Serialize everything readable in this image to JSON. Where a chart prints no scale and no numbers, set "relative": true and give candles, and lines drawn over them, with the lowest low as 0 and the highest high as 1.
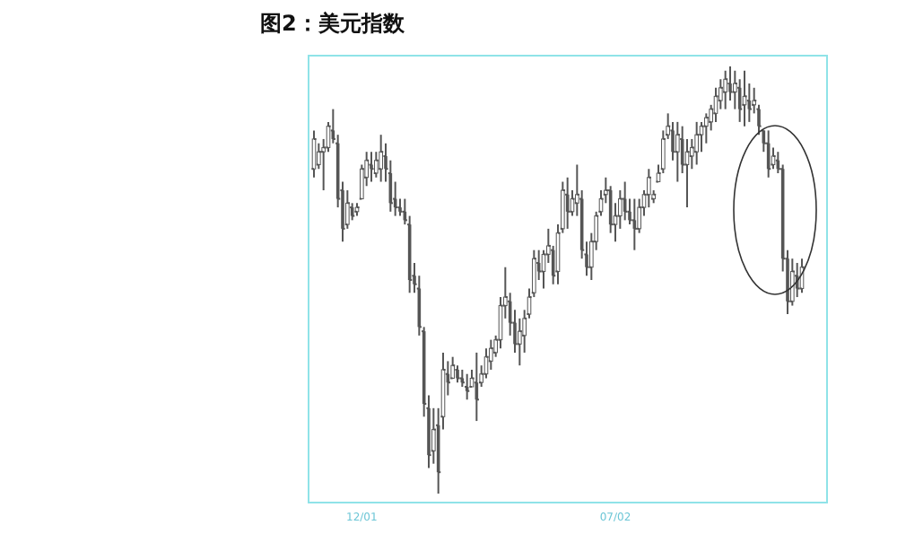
{
  "chart_data": {
    "type": "candlestick",
    "title": "图2：美元指数",
    "relative": true,
    "color": "#555555",
    "categories": [
      null,
      null,
      null,
      null,
      null,
      null,
      null,
      null,
      null,
      null,
      "12/01",
      null,
      null,
      null,
      null,
      null,
      null,
      null,
      null,
      null,
      null,
      null,
      null,
      null,
      null,
      null,
      null,
      null,
      null,
      null,
      null,
      null,
      null,
      null,
      null,
      null,
      null,
      null,
      null,
      null,
      null,
      null,
      null,
      null,
      null,
      null,
      null,
      null,
      null,
      null,
      null,
      null,
      null,
      null,
      null,
      null,
      null,
      null,
      null,
      null,
      null,
      null,
      null,
      "07/02",
      null,
      null,
      null,
      null,
      null,
      null,
      null,
      null,
      null,
      null,
      null,
      null,
      null,
      null,
      null,
      null,
      null,
      null,
      null,
      null,
      null,
      null,
      null,
      null,
      null,
      null,
      null,
      null,
      null,
      null,
      null,
      null,
      null,
      null,
      null,
      null,
      null,
      null,
      null
    ],
    "ohlc": [
      [
        0.76,
        0.85,
        0.74,
        0.83
      ],
      [
        0.77,
        0.82,
        0.76,
        0.8
      ],
      [
        0.8,
        0.83,
        0.71,
        0.81
      ],
      [
        0.81,
        0.87,
        0.8,
        0.86
      ],
      [
        0.85,
        0.9,
        0.82,
        0.83
      ],
      [
        0.82,
        0.84,
        0.67,
        0.69
      ],
      [
        0.71,
        0.73,
        0.59,
        0.62
      ],
      [
        0.63,
        0.71,
        0.62,
        0.68
      ],
      [
        0.67,
        0.68,
        0.64,
        0.65
      ],
      [
        0.66,
        0.68,
        0.65,
        0.67
      ],
      [
        0.69,
        0.77,
        0.69,
        0.76
      ],
      [
        0.74,
        0.8,
        0.72,
        0.78
      ],
      [
        0.77,
        0.8,
        0.73,
        0.76
      ],
      [
        0.75,
        0.8,
        0.74,
        0.78
      ],
      [
        0.76,
        0.84,
        0.73,
        0.8
      ],
      [
        0.79,
        0.82,
        0.73,
        0.76
      ],
      [
        0.75,
        0.78,
        0.66,
        0.68
      ],
      [
        0.69,
        0.73,
        0.65,
        0.67
      ],
      [
        0.67,
        0.69,
        0.65,
        0.66
      ],
      [
        0.66,
        0.69,
        0.63,
        0.64
      ],
      [
        0.63,
        0.65,
        0.47,
        0.5
      ],
      [
        0.51,
        0.54,
        0.47,
        0.49
      ],
      [
        0.48,
        0.51,
        0.37,
        0.39
      ],
      [
        0.38,
        0.39,
        0.18,
        0.21
      ],
      [
        0.2,
        0.23,
        0.06,
        0.09
      ],
      [
        0.1,
        0.2,
        0.07,
        0.15
      ],
      [
        0.16,
        0.2,
        0,
        0.05
      ],
      [
        0.18,
        0.33,
        0.15,
        0.29
      ],
      [
        0.28,
        0.31,
        0.23,
        0.26
      ],
      [
        0.27,
        0.32,
        0.27,
        0.3
      ],
      [
        0.29,
        0.3,
        0.26,
        0.27
      ],
      [
        0.27,
        0.29,
        0.25,
        0.26
      ],
      [
        0.25,
        0.28,
        0.22,
        0.24
      ],
      [
        0.25,
        0.29,
        0.25,
        0.27
      ],
      [
        0.26,
        0.33,
        0.17,
        0.22
      ],
      [
        0.26,
        0.3,
        0.25,
        0.28
      ],
      [
        0.28,
        0.34,
        0.27,
        0.32
      ],
      [
        0.31,
        0.36,
        0.29,
        0.34
      ],
      [
        0.33,
        0.37,
        0.32,
        0.36
      ],
      [
        0.36,
        0.46,
        0.34,
        0.44
      ],
      [
        0.44,
        0.53,
        0.41,
        0.46
      ],
      [
        0.45,
        0.47,
        0.37,
        0.4
      ],
      [
        0.4,
        0.43,
        0.33,
        0.35
      ],
      [
        0.35,
        0.41,
        0.3,
        0.38
      ],
      [
        0.37,
        0.43,
        0.33,
        0.41
      ],
      [
        0.42,
        0.48,
        0.41,
        0.46
      ],
      [
        0.47,
        0.57,
        0.46,
        0.55
      ],
      [
        0.54,
        0.57,
        0.5,
        0.52
      ],
      [
        0.52,
        0.57,
        0.48,
        0.56
      ],
      [
        0.56,
        0.62,
        0.54,
        0.58
      ],
      [
        0.57,
        0.58,
        0.49,
        0.51
      ],
      [
        0.52,
        0.63,
        0.49,
        0.61
      ],
      [
        0.62,
        0.73,
        0.61,
        0.71
      ],
      [
        0.7,
        0.74,
        0.62,
        0.66
      ],
      [
        0.66,
        0.71,
        0.65,
        0.69
      ],
      [
        0.68,
        0.77,
        0.65,
        0.7
      ],
      [
        0.69,
        0.71,
        0.55,
        0.57
      ],
      [
        0.56,
        0.59,
        0.51,
        0.53
      ],
      [
        0.53,
        0.61,
        0.5,
        0.59
      ],
      [
        0.59,
        0.66,
        0.57,
        0.65
      ],
      [
        0.66,
        0.71,
        0.65,
        0.69
      ],
      [
        0.7,
        0.74,
        0.68,
        0.71
      ],
      [
        0.71,
        0.72,
        0.61,
        0.63
      ],
      [
        0.63,
        0.68,
        0.59,
        0.65
      ],
      [
        0.65,
        0.71,
        0.62,
        0.69
      ],
      [
        0.69,
        0.73,
        0.64,
        0.66
      ],
      [
        0.66,
        0.69,
        0.63,
        0.64
      ],
      [
        0.64,
        0.69,
        0.57,
        0.62
      ],
      [
        0.62,
        0.69,
        0.61,
        0.67
      ],
      [
        0.67,
        0.71,
        0.65,
        0.7
      ],
      [
        0.7,
        0.76,
        0.67,
        0.74
      ],
      [
        0.69,
        0.71,
        0.68,
        0.7
      ],
      [
        0.73,
        0.77,
        0.73,
        0.75
      ],
      [
        0.76,
        0.85,
        0.75,
        0.83
      ],
      [
        0.84,
        0.89,
        0.83,
        0.86
      ],
      [
        0.85,
        0.87,
        0.78,
        0.8
      ],
      [
        0.8,
        0.87,
        0.73,
        0.84
      ],
      [
        0.83,
        0.86,
        0.75,
        0.77
      ],
      [
        0.77,
        0.83,
        0.67,
        0.8
      ],
      [
        0.79,
        0.83,
        0.76,
        0.81
      ],
      [
        0.8,
        0.87,
        0.77,
        0.84
      ],
      [
        0.84,
        0.87,
        0.8,
        0.86
      ],
      [
        0.86,
        0.89,
        0.82,
        0.88
      ],
      [
        0.87,
        0.91,
        0.85,
        0.9
      ],
      [
        0.89,
        0.95,
        0.87,
        0.93
      ],
      [
        0.92,
        0.97,
        0.9,
        0.95
      ],
      [
        0.94,
        0.99,
        0.9,
        0.97
      ],
      [
        0.96,
        1,
        0.92,
        0.94
      ],
      [
        0.94,
        0.99,
        0.9,
        0.96
      ],
      [
        0.95,
        0.97,
        0.87,
        0.9
      ],
      [
        0.91,
        0.99,
        0.86,
        0.93
      ],
      [
        0.92,
        0.96,
        0.87,
        0.9
      ],
      [
        0.91,
        0.95,
        0.89,
        0.92
      ],
      [
        0.9,
        0.91,
        0.84,
        0.86
      ],
      [
        0.85,
        0.85,
        0.8,
        0.82
      ],
      [
        0.82,
        0.85,
        0.74,
        0.76
      ],
      [
        0.77,
        0.81,
        0.76,
        0.79
      ],
      [
        0.78,
        0.8,
        0.75,
        0.76
      ],
      [
        0.76,
        0.77,
        0.52,
        0.55
      ],
      [
        0.55,
        0.57,
        0.42,
        0.45
      ],
      [
        0.45,
        0.55,
        0.44,
        0.52
      ],
      [
        0.51,
        0.54,
        0.46,
        0.48
      ],
      [
        0.48,
        0.55,
        0.47,
        0.53
      ]
    ]
  }
}
